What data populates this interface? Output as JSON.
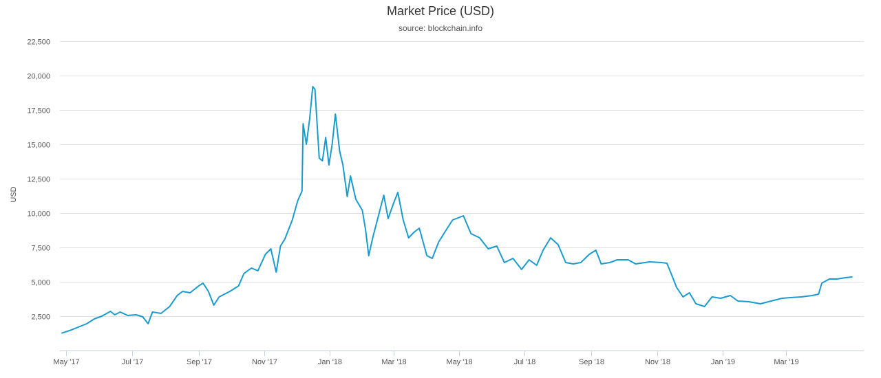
{
  "chart_data": {
    "type": "line",
    "title": "Market Price (USD)",
    "subtitle": "source: blockchain.info",
    "xlabel": "",
    "ylabel": "USD",
    "ylim": [
      0,
      22500
    ],
    "yticks": [
      2500,
      5000,
      7500,
      10000,
      12500,
      15000,
      17500,
      20000,
      22500
    ],
    "ytick_labels": [
      "2,500",
      "5,000",
      "7,500",
      "10,000",
      "12,500",
      "15,000",
      "17,500",
      "20,000",
      "22,500"
    ],
    "xlim": [
      "2017-04-25",
      "2019-05-12"
    ],
    "xticks": [
      "2017-05-01",
      "2017-07-01",
      "2017-09-01",
      "2017-11-01",
      "2018-01-01",
      "2018-03-01",
      "2018-05-01",
      "2018-07-01",
      "2018-09-01",
      "2018-11-01",
      "2019-01-01",
      "2019-03-01"
    ],
    "xtick_labels": [
      "May '17",
      "Jul '17",
      "Sep '17",
      "Nov '17",
      "Jan '18",
      "Mar '18",
      "May '18",
      "Jul '18",
      "Sep '18",
      "Nov '18",
      "Jan '19",
      "Mar '19"
    ],
    "grid": true,
    "legend": "none",
    "line_color": "#1a9bcd",
    "series": [
      {
        "name": "Market Price (USD)",
        "points": [
          [
            "2017-04-27",
            1270
          ],
          [
            "2017-05-05",
            1480
          ],
          [
            "2017-05-12",
            1700
          ],
          [
            "2017-05-20",
            1950
          ],
          [
            "2017-05-27",
            2300
          ],
          [
            "2017-06-03",
            2500
          ],
          [
            "2017-06-11",
            2850
          ],
          [
            "2017-06-15",
            2600
          ],
          [
            "2017-06-20",
            2800
          ],
          [
            "2017-06-27",
            2550
          ],
          [
            "2017-07-05",
            2600
          ],
          [
            "2017-07-11",
            2450
          ],
          [
            "2017-07-16",
            1950
          ],
          [
            "2017-07-20",
            2800
          ],
          [
            "2017-07-28",
            2700
          ],
          [
            "2017-08-05",
            3200
          ],
          [
            "2017-08-12",
            4000
          ],
          [
            "2017-08-17",
            4300
          ],
          [
            "2017-08-24",
            4200
          ],
          [
            "2017-09-01",
            4700
          ],
          [
            "2017-09-05",
            4900
          ],
          [
            "2017-09-10",
            4300
          ],
          [
            "2017-09-15",
            3300
          ],
          [
            "2017-09-20",
            3900
          ],
          [
            "2017-09-30",
            4300
          ],
          [
            "2017-10-08",
            4700
          ],
          [
            "2017-10-13",
            5600
          ],
          [
            "2017-10-20",
            6000
          ],
          [
            "2017-10-26",
            5800
          ],
          [
            "2017-11-02",
            7000
          ],
          [
            "2017-11-07",
            7400
          ],
          [
            "2017-11-12",
            5700
          ],
          [
            "2017-11-16",
            7600
          ],
          [
            "2017-11-20",
            8100
          ],
          [
            "2017-11-27",
            9500
          ],
          [
            "2017-12-02",
            10900
          ],
          [
            "2017-12-06",
            11600
          ],
          [
            "2017-12-07",
            16500
          ],
          [
            "2017-12-10",
            15000
          ],
          [
            "2017-12-13",
            16800
          ],
          [
            "2017-12-16",
            19200
          ],
          [
            "2017-12-18",
            19000
          ],
          [
            "2017-12-22",
            14000
          ],
          [
            "2017-12-25",
            13800
          ],
          [
            "2017-12-28",
            15500
          ],
          [
            "2017-12-31",
            13500
          ],
          [
            "2018-01-03",
            15000
          ],
          [
            "2018-01-06",
            17200
          ],
          [
            "2018-01-10",
            14500
          ],
          [
            "2018-01-13",
            13500
          ],
          [
            "2018-01-17",
            11200
          ],
          [
            "2018-01-20",
            12700
          ],
          [
            "2018-01-25",
            11000
          ],
          [
            "2018-01-31",
            10200
          ],
          [
            "2018-02-03",
            8800
          ],
          [
            "2018-02-06",
            6900
          ],
          [
            "2018-02-10",
            8300
          ],
          [
            "2018-02-16",
            10100
          ],
          [
            "2018-02-20",
            11300
          ],
          [
            "2018-02-24",
            9600
          ],
          [
            "2018-03-01",
            10700
          ],
          [
            "2018-03-05",
            11500
          ],
          [
            "2018-03-10",
            9500
          ],
          [
            "2018-03-15",
            8200
          ],
          [
            "2018-03-20",
            8600
          ],
          [
            "2018-03-25",
            8900
          ],
          [
            "2018-04-01",
            6900
          ],
          [
            "2018-04-06",
            6700
          ],
          [
            "2018-04-12",
            7900
          ],
          [
            "2018-04-20",
            8900
          ],
          [
            "2018-04-25",
            9500
          ],
          [
            "2018-05-05",
            9800
          ],
          [
            "2018-05-12",
            8500
          ],
          [
            "2018-05-20",
            8200
          ],
          [
            "2018-05-28",
            7400
          ],
          [
            "2018-06-05",
            7600
          ],
          [
            "2018-06-12",
            6400
          ],
          [
            "2018-06-20",
            6700
          ],
          [
            "2018-06-28",
            5900
          ],
          [
            "2018-07-05",
            6600
          ],
          [
            "2018-07-12",
            6200
          ],
          [
            "2018-07-18",
            7300
          ],
          [
            "2018-07-25",
            8200
          ],
          [
            "2018-08-01",
            7700
          ],
          [
            "2018-08-08",
            6400
          ],
          [
            "2018-08-15",
            6300
          ],
          [
            "2018-08-22",
            6400
          ],
          [
            "2018-08-30",
            7000
          ],
          [
            "2018-09-05",
            7300
          ],
          [
            "2018-09-10",
            6300
          ],
          [
            "2018-09-18",
            6400
          ],
          [
            "2018-09-25",
            6600
          ],
          [
            "2018-10-05",
            6600
          ],
          [
            "2018-10-12",
            6300
          ],
          [
            "2018-10-25",
            6450
          ],
          [
            "2018-11-05",
            6400
          ],
          [
            "2018-11-10",
            6350
          ],
          [
            "2018-11-14",
            5600
          ],
          [
            "2018-11-19",
            4600
          ],
          [
            "2018-11-25",
            3900
          ],
          [
            "2018-12-01",
            4200
          ],
          [
            "2018-12-07",
            3400
          ],
          [
            "2018-12-15",
            3200
          ],
          [
            "2018-12-22",
            3900
          ],
          [
            "2018-12-30",
            3800
          ],
          [
            "2019-01-08",
            4000
          ],
          [
            "2019-01-15",
            3600
          ],
          [
            "2019-01-25",
            3550
          ],
          [
            "2019-02-05",
            3400
          ],
          [
            "2019-02-15",
            3600
          ],
          [
            "2019-02-25",
            3800
          ],
          [
            "2019-03-05",
            3850
          ],
          [
            "2019-03-15",
            3900
          ],
          [
            "2019-03-25",
            4000
          ],
          [
            "2019-03-31",
            4100
          ],
          [
            "2019-04-03",
            4900
          ],
          [
            "2019-04-10",
            5200
          ],
          [
            "2019-04-17",
            5200
          ],
          [
            "2019-04-25",
            5300
          ],
          [
            "2019-05-01",
            5350
          ]
        ]
      }
    ]
  }
}
